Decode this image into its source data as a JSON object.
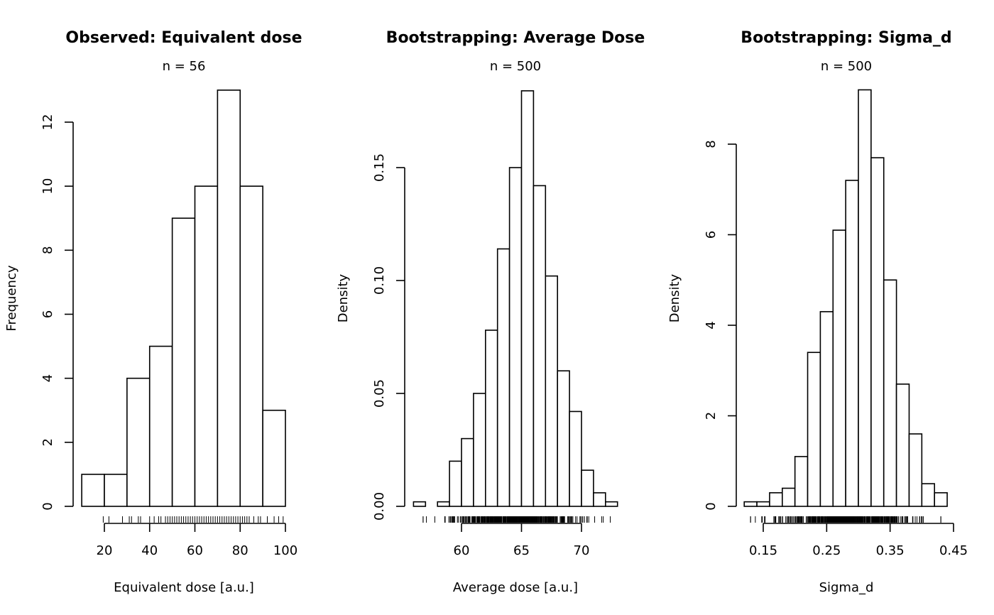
{
  "chart_data": [
    {
      "type": "bar",
      "title": "Observed: Equivalent dose",
      "subtitle": "n =  56",
      "xlabel": "Equivalent dose [a.u.]",
      "ylabel": "Frequency",
      "breaks": [
        10,
        20,
        30,
        40,
        50,
        60,
        70,
        80,
        90,
        100
      ],
      "values": [
        1,
        1,
        4,
        5,
        9,
        10,
        13,
        10,
        3
      ],
      "xticks": [
        20,
        40,
        60,
        80,
        100
      ],
      "yticks": [
        0,
        2,
        4,
        6,
        8,
        10,
        12
      ],
      "xlim": [
        20,
        100
      ],
      "ylim": [
        0,
        13
      ],
      "rug": [
        19.5,
        22,
        28,
        31,
        32,
        35,
        36,
        40,
        42,
        44,
        45,
        47,
        48,
        49,
        50,
        51,
        52,
        53,
        54,
        55,
        56,
        57,
        58,
        59,
        60,
        61,
        62,
        63,
        64,
        65,
        66,
        67,
        68,
        69,
        70,
        71,
        72,
        73,
        74,
        75,
        76,
        77,
        78,
        79,
        80,
        81,
        82,
        83,
        84,
        86,
        88,
        89,
        92,
        95,
        97,
        99
      ]
    },
    {
      "type": "bar",
      "title": "Bootstrapping: Average Dose",
      "subtitle": "n =  500",
      "xlabel": "Average dose [a.u.]",
      "ylabel": "Density",
      "breaks": [
        56,
        57,
        58,
        59,
        60,
        61,
        62,
        63,
        64,
        65,
        66,
        67,
        68,
        69,
        70,
        71,
        72,
        73
      ],
      "values": [
        0.002,
        0,
        0.002,
        0.02,
        0.03,
        0.05,
        0.078,
        0.114,
        0.15,
        0.184,
        0.142,
        0.102,
        0.06,
        0.042,
        0.016,
        0.006,
        0.002
      ],
      "xticks": [
        60,
        65,
        70
      ],
      "yticks": [
        "0.00",
        "0.05",
        "0.10",
        "0.15"
      ],
      "xlim": [
        60,
        70
      ],
      "ylim": [
        0,
        0.184
      ],
      "rug_range": [
        56.8,
        72.4
      ],
      "rug_count": 500
    },
    {
      "type": "bar",
      "title": "Bootstrapping: Sigma_d",
      "subtitle": "n =  500",
      "xlabel": "Sigma_d",
      "ylabel": "Density",
      "breaks": [
        0.12,
        0.14,
        0.16,
        0.18,
        0.2,
        0.22,
        0.24,
        0.26,
        0.28,
        0.3,
        0.32,
        0.34,
        0.36,
        0.38,
        0.4,
        0.42,
        0.44
      ],
      "values": [
        0.1,
        0.1,
        0.3,
        0.4,
        1.1,
        3.4,
        4.3,
        6.1,
        7.2,
        9.2,
        7.7,
        5.0,
        2.7,
        1.6,
        0.5,
        0.3
      ],
      "xticks": [
        "0.15",
        "0.25",
        "0.35",
        "0.45"
      ],
      "yticks": [
        0,
        2,
        4,
        6,
        8
      ],
      "xlim": [
        0.15,
        0.45
      ],
      "ylim": [
        0,
        9.2
      ],
      "rug_range": [
        0.13,
        0.43
      ],
      "rug_count": 500
    }
  ]
}
